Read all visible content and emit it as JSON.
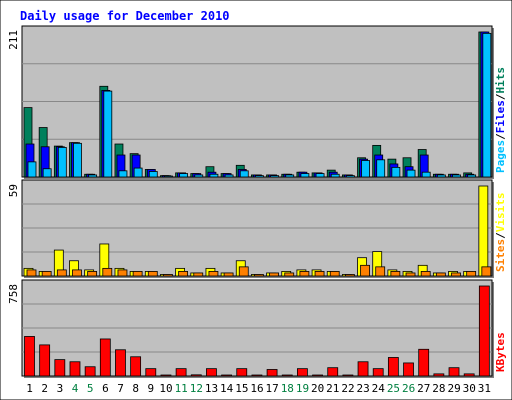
{
  "title": "Daily usage for December 2010",
  "colors": {
    "hits": "#00805C",
    "files": "#0000FF",
    "pages": "#00C0FF",
    "visits": "#FFFF00",
    "sites": "#FF8000",
    "kbytes": "#FF0000",
    "weekend": "#008040",
    "weekday": "#000000",
    "plot_bg": "#C0C0C0",
    "title_color": "#0000FF"
  },
  "chart_data": [
    {
      "type": "bar",
      "panel": "top",
      "max_label": "211",
      "ylim": [
        0,
        211
      ],
      "side_labels": [
        "Pages",
        "Files",
        "Hits"
      ],
      "categories": [
        "1",
        "2",
        "3",
        "4",
        "5",
        "6",
        "7",
        "8",
        "9",
        "10",
        "11",
        "12",
        "13",
        "14",
        "15",
        "16",
        "17",
        "18",
        "19",
        "20",
        "21",
        "22",
        "23",
        "24",
        "25",
        "26",
        "27",
        "28",
        "29",
        "30",
        "31"
      ],
      "series": [
        {
          "name": "Hits",
          "values": [
            101,
            72,
            45,
            50,
            4,
            132,
            48,
            34,
            11,
            2,
            6,
            5,
            15,
            5,
            17,
            3,
            3,
            4,
            7,
            6,
            10,
            3,
            28,
            46,
            26,
            28,
            40,
            4,
            4,
            6,
            211
          ]
        },
        {
          "name": "Files",
          "values": [
            48,
            44,
            44,
            50,
            4,
            126,
            32,
            32,
            11,
            2,
            6,
            5,
            7,
            5,
            11,
            3,
            3,
            4,
            7,
            6,
            7,
            3,
            26,
            32,
            19,
            15,
            32,
            4,
            4,
            4,
            211
          ]
        },
        {
          "name": "Pages",
          "values": [
            22,
            12,
            43,
            49,
            3,
            125,
            9,
            13,
            8,
            1,
            5,
            3,
            4,
            3,
            9,
            2,
            2,
            3,
            5,
            5,
            4,
            2,
            24,
            25,
            14,
            10,
            7,
            3,
            3,
            3,
            209
          ]
        }
      ],
      "grid": true
    },
    {
      "type": "bar",
      "panel": "middle",
      "max_label": "59",
      "ylim": [
        0,
        59
      ],
      "side_labels": [
        "Sites",
        "Visits"
      ],
      "categories": [
        "1",
        "2",
        "3",
        "4",
        "5",
        "6",
        "7",
        "8",
        "9",
        "10",
        "11",
        "12",
        "13",
        "14",
        "15",
        "16",
        "17",
        "18",
        "19",
        "20",
        "21",
        "22",
        "23",
        "24",
        "25",
        "26",
        "27",
        "28",
        "29",
        "30",
        "31"
      ],
      "series": [
        {
          "name": "Visits",
          "values": [
            5,
            3,
            17,
            10,
            4,
            21,
            5,
            3,
            3,
            1,
            5,
            2,
            5,
            2,
            10,
            1,
            2,
            3,
            4,
            4,
            3,
            1,
            12,
            16,
            4,
            3,
            7,
            2,
            3,
            3,
            59
          ]
        },
        {
          "name": "Sites",
          "values": [
            4,
            3,
            4,
            4,
            3,
            5,
            4,
            3,
            3,
            1,
            3,
            2,
            3,
            2,
            6,
            1,
            2,
            2,
            3,
            3,
            3,
            1,
            7,
            6,
            3,
            2,
            3,
            2,
            2,
            3,
            6
          ]
        }
      ],
      "grid": true
    },
    {
      "type": "bar",
      "panel": "bottom",
      "max_label": "758",
      "ylim": [
        0,
        758
      ],
      "side_labels": [
        "KBytes"
      ],
      "categories": [
        "1",
        "2",
        "3",
        "4",
        "5",
        "6",
        "7",
        "8",
        "9",
        "10",
        "11",
        "12",
        "13",
        "14",
        "15",
        "16",
        "17",
        "18",
        "19",
        "20",
        "21",
        "22",
        "23",
        "24",
        "25",
        "26",
        "27",
        "28",
        "29",
        "30",
        "31"
      ],
      "series": [
        {
          "name": "KBytes",
          "values": [
            333,
            262,
            138,
            120,
            78,
            312,
            221,
            162,
            62,
            5,
            62,
            10,
            62,
            8,
            62,
            8,
            55,
            8,
            62,
            8,
            70,
            8,
            120,
            62,
            156,
            110,
            225,
            18,
            70,
            18,
            758
          ]
        }
      ],
      "grid": true
    }
  ],
  "x_labels": [
    "1",
    "2",
    "3",
    "4",
    "5",
    "6",
    "7",
    "8",
    "9",
    "10",
    "11",
    "12",
    "13",
    "14",
    "15",
    "16",
    "17",
    "18",
    "19",
    "20",
    "21",
    "22",
    "23",
    "24",
    "25",
    "26",
    "27",
    "28",
    "29",
    "30",
    "31"
  ],
  "weekend_days": [
    "4",
    "5",
    "11",
    "12",
    "18",
    "19",
    "25",
    "26"
  ]
}
